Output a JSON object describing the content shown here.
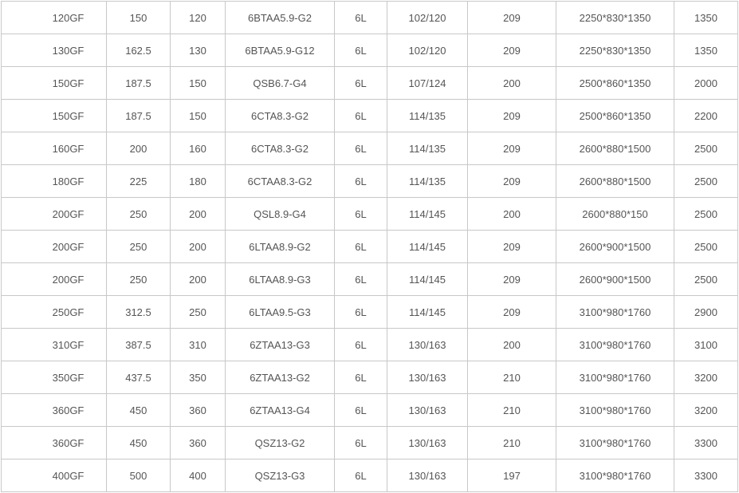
{
  "table": {
    "rows": [
      [
        "120GF",
        "150",
        "120",
        "6BTAA5.9-G2",
        "6L",
        "102/120",
        "209",
        "2250*830*1350",
        "1350"
      ],
      [
        "130GF",
        "162.5",
        "130",
        "6BTAA5.9-G12",
        "6L",
        "102/120",
        "209",
        "2250*830*1350",
        "1350"
      ],
      [
        "150GF",
        "187.5",
        "150",
        "QSB6.7-G4",
        "6L",
        "107/124",
        "200",
        "2500*860*1350",
        "2000"
      ],
      [
        "150GF",
        "187.5",
        "150",
        "6CTA8.3-G2",
        "6L",
        "114/135",
        "209",
        "2500*860*1350",
        "2200"
      ],
      [
        "160GF",
        "200",
        "160",
        "6CTA8.3-G2",
        "6L",
        "114/135",
        "209",
        "2600*880*1500",
        "2500"
      ],
      [
        "180GF",
        "225",
        "180",
        "6CTAA8.3-G2",
        "6L",
        "114/135",
        "209",
        "2600*880*1500",
        "2500"
      ],
      [
        "200GF",
        "250",
        "200",
        "QSL8.9-G4",
        "6L",
        "114/145",
        "200",
        "2600*880*150",
        "2500"
      ],
      [
        "200GF",
        "250",
        "200",
        "6LTAA8.9-G2",
        "6L",
        "114/145",
        "209",
        "2600*900*1500",
        "2500"
      ],
      [
        "200GF",
        "250",
        "200",
        "6LTAA8.9-G3",
        "6L",
        "114/145",
        "209",
        "2600*900*1500",
        "2500"
      ],
      [
        "250GF",
        "312.5",
        "250",
        "6LTAA9.5-G3",
        "6L",
        "114/145",
        "209",
        "3100*980*1760",
        "2900"
      ],
      [
        "310GF",
        "387.5",
        "310",
        "6ZTAA13-G3",
        "6L",
        "130/163",
        "200",
        "3100*980*1760",
        "3100"
      ],
      [
        "350GF",
        "437.5",
        "350",
        "6ZTAA13-G2",
        "6L",
        "130/163",
        "210",
        "3100*980*1760",
        "3200"
      ],
      [
        "360GF",
        "450",
        "360",
        "6ZTAA13-G4",
        "6L",
        "130/163",
        "210",
        "3100*980*1760",
        "3200"
      ],
      [
        "360GF",
        "450",
        "360",
        "QSZ13-G2",
        "6L",
        "130/163",
        "210",
        "3100*980*1760",
        "3300"
      ],
      [
        "400GF",
        "500",
        "400",
        "QSZ13-G3",
        "6L",
        "130/163",
        "197",
        "3100*980*1760",
        "3300"
      ]
    ]
  }
}
